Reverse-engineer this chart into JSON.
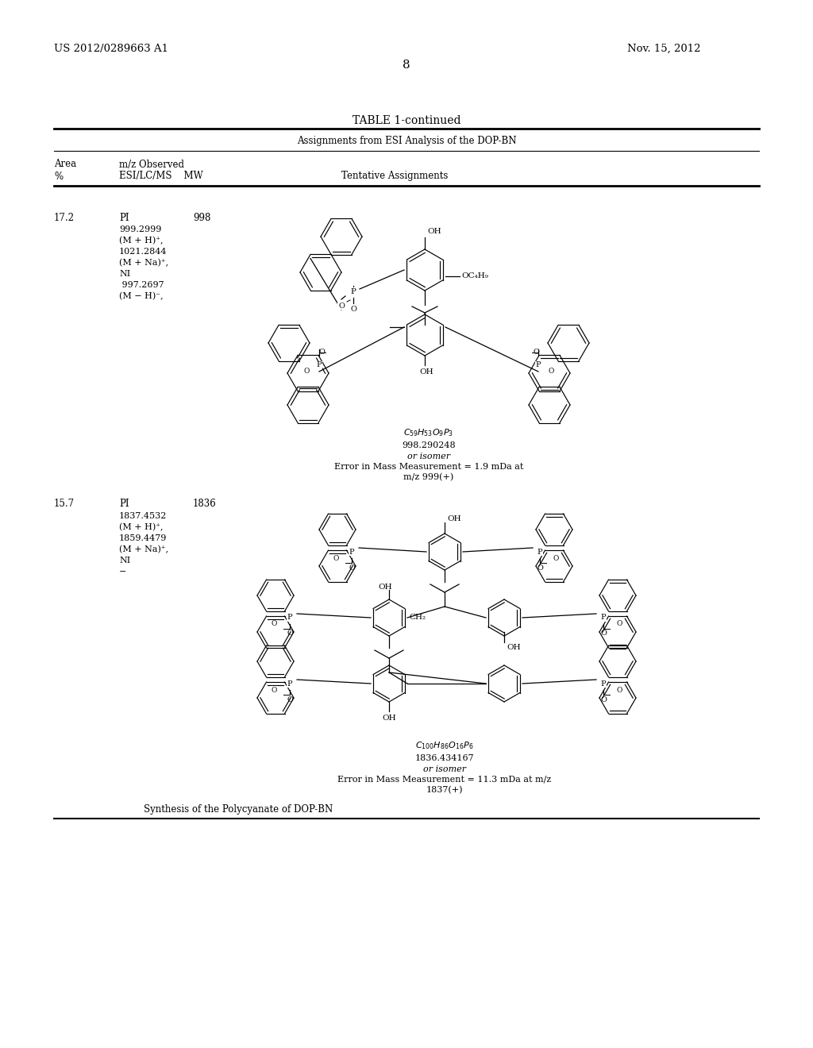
{
  "patent_number": "US 2012/0289663 A1",
  "date": "Nov. 15, 2012",
  "page_number": "8",
  "table_title": "TABLE 1-continued",
  "table_subtitle": "Assignments from ESI Analysis of the DOP-BN",
  "col1_header1": "Area",
  "col1_header2": "%",
  "col2_header1": "m/z Observed",
  "col2_header2": "ESI/LC/MS    MW",
  "col3_header": "Tentative Assignments",
  "row1_area": "17.2",
  "row1_pi": "PI",
  "row1_mw": "998",
  "row1_details": [
    "999.2999",
    "(M + H)⁺,",
    "1021.2844",
    "(M + Na)⁺,",
    "NI",
    " 997.2697",
    "(M − H)⁻,"
  ],
  "row1_formula": "C₅₉H₅₃O₉P₃",
  "row1_formula_num": "998.290248",
  "row1_formula_note": "or isomer",
  "row1_error1": "Error in Mass Measurement = 1.9 mDa at",
  "row1_error2": "m/z 999(+)",
  "row2_area": "15.7",
  "row2_pi": "PI",
  "row2_mw": "1836",
  "row2_details": [
    "1837.4532",
    "(M + H)⁺,",
    "1859.4479",
    "(M + Na)⁺,",
    "NI",
    "−"
  ],
  "row2_formula": "C₁₀₀H₈₆O₁₆P₆",
  "row2_formula_num": "1836.434167",
  "row2_formula_note": "or isomer",
  "row2_error1": "Error in Mass Measurement = 11.3 mDa at m/z",
  "row2_error2": "1837(+)",
  "bottom_text": "Synthesis of the Polycyanate of DOP-BN",
  "bg_color": "#ffffff"
}
